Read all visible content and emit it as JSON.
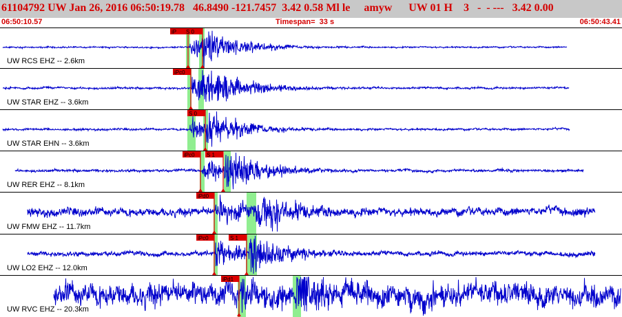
{
  "header": {
    "title": "61104792 UW Jan 26, 2016 06:50:19.78   46.8490 -121.7457  3.42 0.58 Ml le     amyw      UW 01 H    3   -  - ---   3.42 0.00",
    "start_time": "06:50:10.57",
    "timespan": "Timespan=  33 s",
    "end_time": "06:50:43.41"
  },
  "colors": {
    "trace": "#0000cc",
    "pick": "#dd0000",
    "window": "#90ee90",
    "header_text": "#d40000"
  },
  "traces": [
    {
      "label": "UW RCS EHZ -- 2.6km",
      "picks": [
        "iP",
        "S 0"
      ]
    },
    {
      "label": "UW STAR EHZ -- 3.6km",
      "picks": [
        "iPc0"
      ]
    },
    {
      "label": "UW STAR EHN -- 3.6km",
      "picks": [
        "S 0"
      ]
    },
    {
      "label": "UW RER EHZ -- 8.1km",
      "picks": [
        "iPc0",
        "S 1"
      ]
    },
    {
      "label": "UW FMW EHZ -- 11.7km",
      "picks": [
        "iPd0"
      ]
    },
    {
      "label": "UW LO2 EHZ -- 12.0km",
      "picks": [
        "iPc0",
        "S 1"
      ]
    },
    {
      "label": "UW RVC EHZ -- 20.3km",
      "picks": [
        "iPd1"
      ]
    }
  ]
}
